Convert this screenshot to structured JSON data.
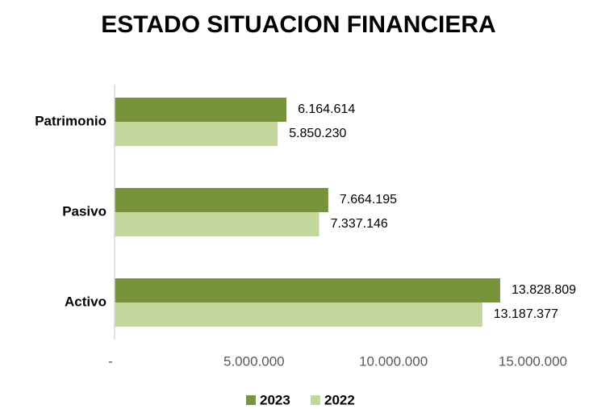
{
  "chart_data": {
    "type": "hbar",
    "title": "ESTADO SITUACION FINANCIERA",
    "categories": [
      "Patrimonio",
      "Pasivo",
      "Activo"
    ],
    "series": [
      {
        "name": "2023",
        "color": "#77933c",
        "values": [
          6164614,
          7664195,
          13828809
        ],
        "value_labels": [
          "6.164.614",
          "7.664.195",
          "13.828.809"
        ]
      },
      {
        "name": "2022",
        "color": "#c3d69b",
        "values": [
          5850230,
          7337146,
          13187377
        ],
        "value_labels": [
          "5.850.230",
          "7.337.146",
          "13.187.377"
        ]
      }
    ],
    "xlim": [
      0,
      16000000
    ],
    "xticks": [
      {
        "value": 0,
        "label": "-"
      },
      {
        "value": 5000000,
        "label": "5.000.000"
      },
      {
        "value": 10000000,
        "label": "10.000.000"
      },
      {
        "value": 15000000,
        "label": "15.000.000"
      }
    ],
    "legend": "bottom",
    "grid": false
  }
}
